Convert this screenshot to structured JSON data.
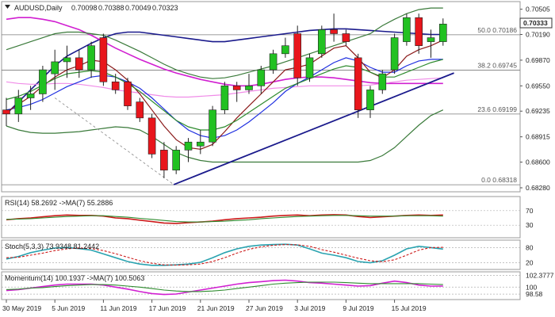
{
  "chart_data": [
    {
      "type": "candlestick",
      "title": "AUDUSD,Daily",
      "ohlc_header": {
        "open": "0.70098",
        "high": "0.70388",
        "low": "0.70049",
        "close": "0.70323"
      },
      "last_price_label": "0.70333",
      "y_ticks": [
        "0.70505",
        "0.70190",
        "0.69870",
        "0.69550",
        "0.69235",
        "0.68915",
        "0.68600",
        "0.68280"
      ],
      "ylim": [
        0.6825,
        0.7058
      ],
      "fib_levels": [
        {
          "label": "50.0 0.70186",
          "value": 0.70186
        },
        {
          "label": "38.2 0.69745",
          "value": 0.69745
        },
        {
          "label": "23.6 0.69199",
          "value": 0.69199
        },
        {
          "label": "0.0 0.68318",
          "value": 0.68318
        }
      ],
      "candles": [
        {
          "open": 0.6925,
          "high": 0.694,
          "low": 0.6905,
          "close": 0.692
        },
        {
          "open": 0.692,
          "high": 0.695,
          "low": 0.691,
          "close": 0.694
        },
        {
          "open": 0.694,
          "high": 0.6955,
          "low": 0.6925,
          "close": 0.6945
        },
        {
          "open": 0.6945,
          "high": 0.698,
          "low": 0.6935,
          "close": 0.6975
        },
        {
          "open": 0.697,
          "high": 0.7,
          "low": 0.695,
          "close": 0.6985
        },
        {
          "open": 0.6985,
          "high": 0.7005,
          "low": 0.6965,
          "close": 0.699
        },
        {
          "open": 0.699,
          "high": 0.7,
          "low": 0.6965,
          "close": 0.6975
        },
        {
          "open": 0.6975,
          "high": 0.701,
          "low": 0.6965,
          "close": 0.7005
        },
        {
          "open": 0.7015,
          "high": 0.702,
          "low": 0.6955,
          "close": 0.696
        },
        {
          "open": 0.696,
          "high": 0.697,
          "low": 0.6945,
          "close": 0.695
        },
        {
          "open": 0.696,
          "high": 0.6965,
          "low": 0.6925,
          "close": 0.693
        },
        {
          "open": 0.6935,
          "high": 0.694,
          "low": 0.691,
          "close": 0.6915
        },
        {
          "open": 0.6915,
          "high": 0.692,
          "low": 0.6865,
          "close": 0.687
        },
        {
          "open": 0.6875,
          "high": 0.6885,
          "low": 0.684,
          "close": 0.685
        },
        {
          "open": 0.685,
          "high": 0.688,
          "low": 0.6845,
          "close": 0.6875
        },
        {
          "open": 0.6875,
          "high": 0.689,
          "low": 0.686,
          "close": 0.6885
        },
        {
          "open": 0.688,
          "high": 0.69,
          "low": 0.687,
          "close": 0.6885
        },
        {
          "open": 0.6885,
          "high": 0.693,
          "low": 0.688,
          "close": 0.6925
        },
        {
          "open": 0.6925,
          "high": 0.696,
          "low": 0.692,
          "close": 0.6955
        },
        {
          "open": 0.6955,
          "high": 0.696,
          "low": 0.6935,
          "close": 0.695
        },
        {
          "open": 0.695,
          "high": 0.697,
          "low": 0.6945,
          "close": 0.6955
        },
        {
          "open": 0.6955,
          "high": 0.698,
          "low": 0.6945,
          "close": 0.6975
        },
        {
          "open": 0.6975,
          "high": 0.7,
          "low": 0.697,
          "close": 0.6995
        },
        {
          "open": 0.6995,
          "high": 0.7015,
          "low": 0.699,
          "close": 0.7005
        },
        {
          "open": 0.702,
          "high": 0.703,
          "low": 0.6955,
          "close": 0.6965
        },
        {
          "open": 0.6965,
          "high": 0.6995,
          "low": 0.696,
          "close": 0.699
        },
        {
          "open": 0.6995,
          "high": 0.703,
          "low": 0.699,
          "close": 0.7025
        },
        {
          "open": 0.7025,
          "high": 0.7045,
          "low": 0.701,
          "close": 0.702
        },
        {
          "open": 0.702,
          "high": 0.7025,
          "low": 0.7005,
          "close": 0.701
        },
        {
          "open": 0.699,
          "high": 0.6995,
          "low": 0.6915,
          "close": 0.6925
        },
        {
          "open": 0.6925,
          "high": 0.6955,
          "low": 0.6915,
          "close": 0.695
        },
        {
          "open": 0.695,
          "high": 0.6975,
          "low": 0.6945,
          "close": 0.697
        },
        {
          "open": 0.6975,
          "high": 0.702,
          "low": 0.697,
          "close": 0.7015
        },
        {
          "open": 0.701,
          "high": 0.7045,
          "low": 0.7005,
          "close": 0.704
        },
        {
          "open": 0.704,
          "high": 0.7045,
          "low": 0.6995,
          "close": 0.7005
        },
        {
          "open": 0.701,
          "high": 0.7025,
          "low": 0.699,
          "close": 0.7015
        },
        {
          "open": 0.701,
          "high": 0.7039,
          "low": 0.7005,
          "close": 0.7032
        }
      ],
      "overlays": [
        {
          "color": "#1a1a8c",
          "values": [
            0.692,
            0.6935,
            0.695,
            0.6965,
            0.698,
            0.6992,
            0.7,
            0.7008,
            0.7015,
            0.702,
            0.7022,
            0.7022,
            0.702,
            0.7018,
            0.7016,
            0.7014,
            0.7012,
            0.701,
            0.701,
            0.7012,
            0.7014,
            0.7016,
            0.7018,
            0.702,
            0.7022,
            0.7024,
            0.7025,
            0.7026,
            0.7026,
            0.7025,
            0.7024,
            0.7023,
            0.7022,
            0.7021,
            0.702,
            0.7019,
            0.7019
          ]
        },
        {
          "color": "#d11fd1",
          "values": [
            0.7038,
            0.704,
            0.704,
            0.7038,
            0.7035,
            0.703,
            0.7025,
            0.7018,
            0.701,
            0.7002,
            0.6995,
            0.6988,
            0.6982,
            0.6976,
            0.6971,
            0.6967,
            0.6963,
            0.696,
            0.6957,
            0.6955,
            0.6955,
            0.6957,
            0.696,
            0.6963,
            0.6965,
            0.6966,
            0.6966,
            0.6965,
            0.6963,
            0.6961,
            0.6959,
            0.6958,
            0.6958,
            0.6958,
            0.6958,
            0.6958,
            0.6958
          ]
        },
        {
          "color": "#f08ce8",
          "values": [
            0.696,
            0.6958,
            0.6957,
            0.6957,
            0.6958,
            0.6958,
            0.6957,
            0.6955,
            0.6953,
            0.695,
            0.6948,
            0.6946,
            0.6944,
            0.6942,
            0.6941,
            0.6941,
            0.6942,
            0.6943,
            0.6944,
            0.6946,
            0.6948,
            0.695,
            0.6952,
            0.6953,
            0.6954,
            0.6955,
            0.6955,
            0.6955,
            0.6955,
            0.6955,
            0.6956,
            0.6958,
            0.696,
            0.6962,
            0.6963,
            0.6964,
            0.6965
          ]
        },
        {
          "color": "#1f2fe0",
          "values": [
            0.6925,
            0.6928,
            0.6932,
            0.6938,
            0.6946,
            0.6954,
            0.696,
            0.6966,
            0.6968,
            0.6966,
            0.696,
            0.6952,
            0.694,
            0.6926,
            0.6912,
            0.69,
            0.6893,
            0.689,
            0.6893,
            0.69,
            0.691,
            0.6922,
            0.6934,
            0.6948,
            0.6958,
            0.6966,
            0.6975,
            0.6984,
            0.699,
            0.6986,
            0.6978,
            0.6972,
            0.6972,
            0.698,
            0.6986,
            0.6988,
            0.6988
          ]
        },
        {
          "color": "#8b1a1a",
          "values": [
            0.6922,
            0.6932,
            0.6942,
            0.6955,
            0.6966,
            0.6975,
            0.698,
            0.6987,
            0.6985,
            0.6975,
            0.6962,
            0.6945,
            0.6925,
            0.6905,
            0.6888,
            0.6878,
            0.6876,
            0.6882,
            0.6898,
            0.6915,
            0.693,
            0.6945,
            0.696,
            0.6975,
            0.6978,
            0.6982,
            0.6992,
            0.7002,
            0.7005,
            0.699,
            0.6972,
            0.6965,
            0.6975,
            0.6992,
            0.7,
            0.7005,
            0.7012
          ]
        },
        {
          "color": "#2e8b2e",
          "values": [
            0.6938,
            0.6942,
            0.6948,
            0.6956,
            0.6964,
            0.697,
            0.6972,
            0.6974,
            0.6972,
            0.6966,
            0.6958,
            0.6948,
            0.6936,
            0.6924,
            0.6912,
            0.6904,
            0.69,
            0.69,
            0.6904,
            0.6912,
            0.6922,
            0.6932,
            0.6942,
            0.6952,
            0.6958,
            0.6964,
            0.697,
            0.6976,
            0.698,
            0.6978,
            0.6972,
            0.6966,
            0.6966,
            0.6972,
            0.6978,
            0.6984,
            0.6988
          ]
        },
        {
          "color": "#3a7a3a",
          "values": [
            0.7,
            0.7005,
            0.701,
            0.7015,
            0.702,
            0.7022,
            0.7022,
            0.702,
            0.7018,
            0.7012,
            0.7005,
            0.6998,
            0.699,
            0.6982,
            0.6975,
            0.697,
            0.6966,
            0.6964,
            0.6965,
            0.6968,
            0.6972,
            0.6976,
            0.698,
            0.6985,
            0.699,
            0.6995,
            0.7,
            0.7005,
            0.701,
            0.7015,
            0.702,
            0.703,
            0.7038,
            0.7045,
            0.705,
            0.7052,
            0.7052
          ]
        },
        {
          "color": "#3a7a3a",
          "values": [
            0.6905,
            0.69,
            0.6897,
            0.6896,
            0.6896,
            0.6897,
            0.6898,
            0.69,
            0.6902,
            0.6904,
            0.6903,
            0.69,
            0.6892,
            0.6882,
            0.6872,
            0.6866,
            0.6862,
            0.686,
            0.686,
            0.686,
            0.686,
            0.686,
            0.686,
            0.686,
            0.686,
            0.686,
            0.686,
            0.686,
            0.686,
            0.686,
            0.6862,
            0.6868,
            0.6878,
            0.6892,
            0.6906,
            0.6918,
            0.6925
          ]
        }
      ],
      "trendline": {
        "start": [
          13.8,
          0.6832
        ],
        "end": [
          36.9,
          0.6971
        ],
        "color": "#1a1a8c"
      },
      "dashed_line": {
        "start": [
          4.0,
          0.694
        ],
        "end": [
          13.8,
          0.6832
        ],
        "color": "#888888"
      },
      "x_tick_labels": [
        {
          "label": "30 May 2019",
          "index": 0
        },
        {
          "label": "5 Jun 2019",
          "index": 4
        },
        {
          "label": "11 Jun 2019",
          "index": 8
        },
        {
          "label": "17 Jun 2019",
          "index": 12
        },
        {
          "label": "21 Jun 2019",
          "index": 16
        },
        {
          "label": "27 Jun 2019",
          "index": 20
        },
        {
          "label": "3 Jul 2019",
          "index": 24
        },
        {
          "label": "9 Jul 2019",
          "index": 28
        },
        {
          "label": "15 Jul 2019",
          "index": 32
        }
      ]
    },
    {
      "type": "line",
      "title": "RSI(14) 58.2692 ->MA(7) 55.2886",
      "ylim": [
        0,
        100
      ],
      "y_ticks": [
        {
          "label": "70",
          "value": 70
        },
        {
          "label": "30",
          "value": 30
        }
      ],
      "series": [
        {
          "color": "#cc1a1a",
          "values": [
            45,
            48,
            50,
            53,
            56,
            58,
            57,
            57,
            55,
            50,
            48,
            44,
            40,
            36,
            35,
            37,
            39,
            41,
            45,
            48,
            50,
            52,
            55,
            57,
            58,
            56,
            58,
            59,
            58,
            54,
            51,
            53,
            55,
            57,
            58,
            57,
            58
          ]
        },
        {
          "color": "#2e8b2e",
          "values": [
            46,
            47,
            48,
            50,
            52,
            54,
            55,
            56,
            56,
            54,
            52,
            49,
            46,
            43,
            40,
            39,
            39,
            40,
            41,
            43,
            45,
            48,
            50,
            52,
            54,
            55,
            56,
            57,
            57,
            56,
            55,
            55,
            55,
            56,
            56,
            56,
            55
          ]
        }
      ]
    },
    {
      "type": "line",
      "title": "Stoch(5,3,3) 73.9348 81.2442",
      "ylim": [
        0,
        100
      ],
      "y_ticks": [
        {
          "label": "80",
          "value": 80
        },
        {
          "label": "20",
          "value": 20
        }
      ],
      "series": [
        {
          "color": "#2aa3b0",
          "values": [
            35,
            45,
            60,
            70,
            78,
            80,
            76,
            70,
            55,
            40,
            25,
            15,
            10,
            10,
            12,
            15,
            22,
            40,
            60,
            75,
            85,
            90,
            92,
            93,
            90,
            75,
            58,
            50,
            40,
            25,
            20,
            28,
            50,
            75,
            85,
            80,
            74
          ]
        },
        {
          "color": "#cc1a1a",
          "values": [
            40,
            42,
            50,
            58,
            68,
            75,
            78,
            76,
            68,
            56,
            42,
            28,
            18,
            12,
            11,
            12,
            15,
            25,
            40,
            58,
            73,
            83,
            89,
            92,
            91,
            85,
            72,
            62,
            50,
            38,
            28,
            24,
            32,
            50,
            70,
            80,
            81
          ]
        }
      ]
    },
    {
      "type": "line",
      "title": "Momentum(14) 100.1937 ->MA(7) 100.5063",
      "ylim": [
        97.8,
        102.6
      ],
      "y_ticks": [
        {
          "label": "102.3777",
          "value": 102.38
        },
        {
          "label": "100",
          "value": 100
        },
        {
          "label": "98.58",
          "value": 98.58
        }
      ],
      "series": [
        {
          "color": "#d11fd1",
          "values": [
            99.3,
            99.5,
            99.8,
            100.1,
            100.4,
            100.6,
            100.6,
            100.6,
            100.4,
            100.0,
            99.6,
            99.1,
            98.7,
            98.5,
            98.6,
            99.0,
            99.4,
            99.8,
            100.2,
            100.6,
            100.9,
            101.1,
            101.3,
            101.4,
            101.2,
            100.9,
            100.8,
            100.6,
            100.4,
            100.2,
            100.3,
            100.8,
            101.2,
            100.9,
            100.4,
            100.2,
            100.2
          ]
        },
        {
          "color": "#2e8b2e",
          "values": [
            99.5,
            99.6,
            99.8,
            99.9,
            100.1,
            100.3,
            100.4,
            100.5,
            100.5,
            100.4,
            100.2,
            100.0,
            99.7,
            99.4,
            99.2,
            99.1,
            99.1,
            99.2,
            99.4,
            99.7,
            100.0,
            100.3,
            100.6,
            100.8,
            100.9,
            101.0,
            101.0,
            101.0,
            100.9,
            100.8,
            100.7,
            100.7,
            100.7,
            100.7,
            100.7,
            100.6,
            100.5
          ]
        }
      ]
    }
  ]
}
